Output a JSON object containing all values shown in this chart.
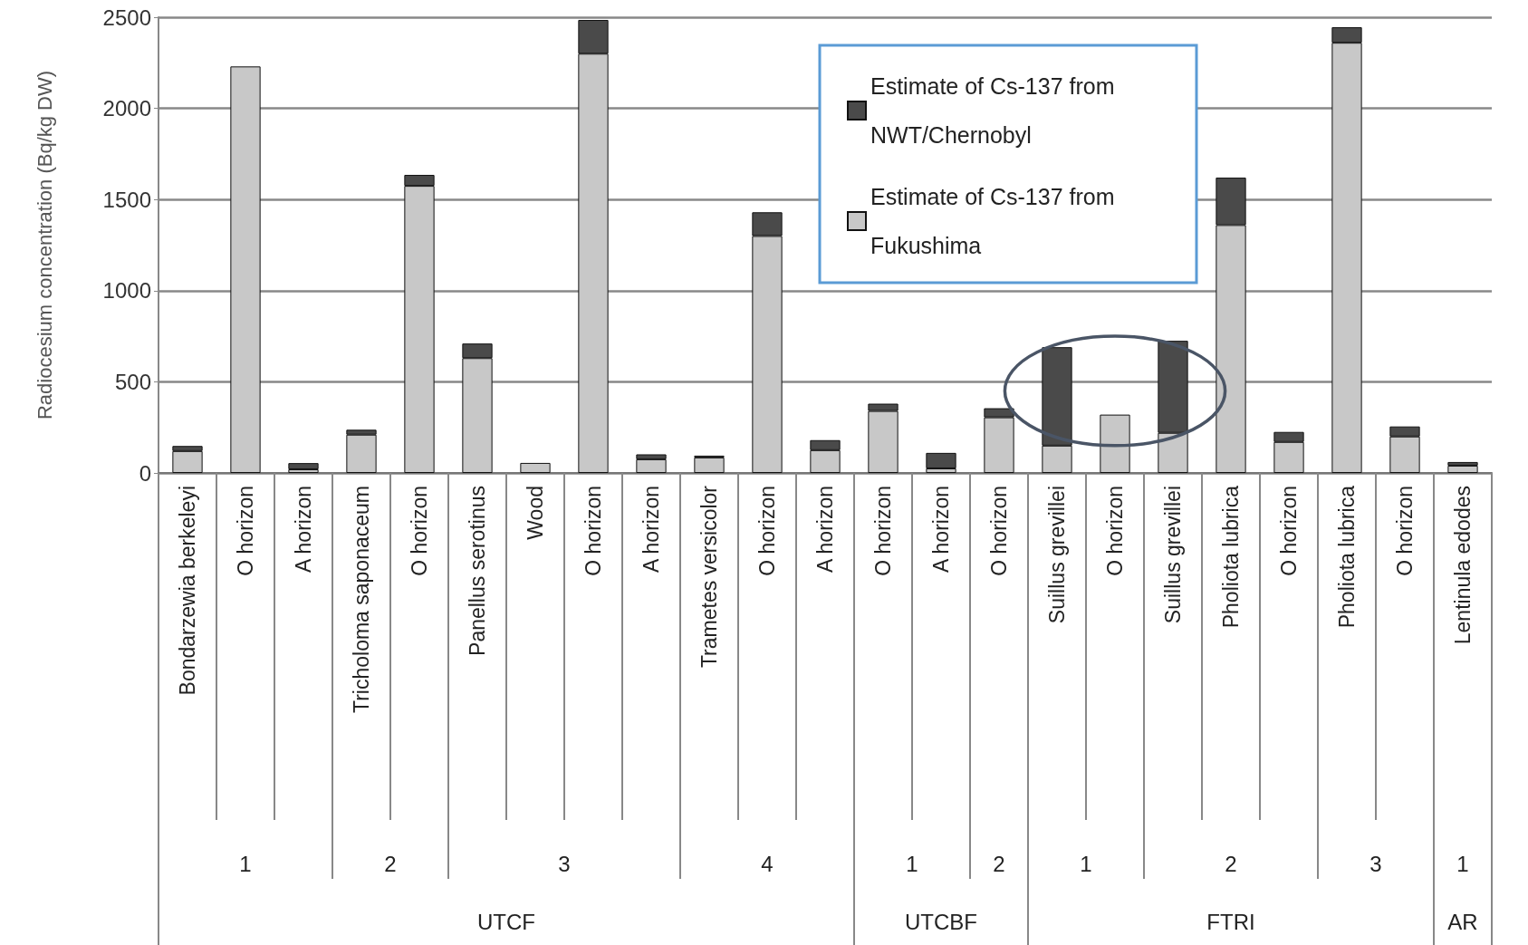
{
  "chart_data": {
    "type": "bar",
    "stacked": true,
    "ylabel": "Radiocesium concentration (Bq/kg DW)",
    "categories": [
      "Bondarzewia berkeleyi",
      "O horizon",
      "A horizon",
      "Tricholoma saponaceum",
      "O horizon",
      "Panellus serotinus",
      "Wood",
      "O horizon",
      "A horizon",
      "Trametes versicolor",
      "O horizon",
      "A horizon",
      "O horizon",
      "A horizon",
      "O horizon",
      "Suillus grevillei",
      "O horizon",
      "Suillus grevillei",
      "Pholiota lubrica",
      "O horizon",
      "Pholiota lubrica",
      "O horizon",
      "Lentinula edodes"
    ],
    "series": [
      {
        "name": "Estimate of Cs-137 from Fukushima",
        "color": "#c8c8c8",
        "values": [
          120,
          2230,
          20,
          210,
          1575,
          630,
          55,
          2300,
          75,
          85,
          1300,
          125,
          340,
          25,
          305,
          150,
          320,
          220,
          1360,
          170,
          2360,
          200,
          40
        ]
      },
      {
        "name": "Estimate of Cs-137 from NWT/Chernobyl",
        "color": "#4a4a4a",
        "values": [
          28,
          0,
          34,
          27,
          60,
          80,
          0,
          185,
          27,
          10,
          130,
          55,
          40,
          85,
          50,
          540,
          0,
          505,
          260,
          55,
          85,
          55,
          20
        ]
      }
    ],
    "ylim": [
      0,
      2500
    ],
    "yticks": [
      0,
      500,
      1000,
      1500,
      2000,
      2500
    ],
    "grid": "y",
    "legend": "top",
    "annotations": [
      "1",
      "2",
      "3",
      "4",
      "1",
      "2",
      "1",
      "2",
      "3",
      "1",
      "UTCF",
      "UTCBF",
      "FTRI",
      "AR"
    ]
  }
}
